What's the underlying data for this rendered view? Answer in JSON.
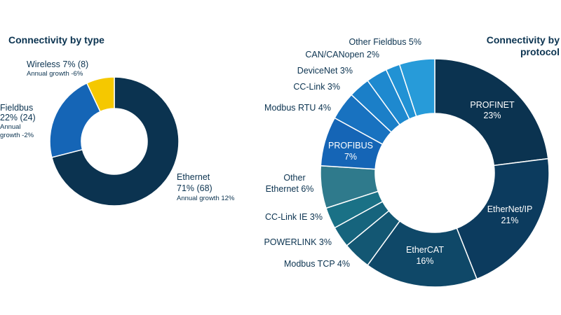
{
  "chart_data": [
    {
      "type": "pie",
      "title": "Connectivity by type",
      "donut": true,
      "slices": [
        {
          "label": "Ethernet",
          "value": 71,
          "count": "(68)",
          "growth": "Annual growth 12%",
          "color": "#0b3350"
        },
        {
          "label": "Fieldbus",
          "value": 22,
          "count": "(24)",
          "growth_line1": "Annual",
          "growth_line2": "growth -2%",
          "color": "#1565b6"
        },
        {
          "label": "Wireless",
          "value": 7,
          "count": "(8)",
          "growth": "Annual growth -6%",
          "color": "#f5c800"
        }
      ],
      "labels": {
        "ethernet": {
          "name": "Ethernet",
          "line2": "71% (68)",
          "growth": "Annual growth 12%"
        },
        "fieldbus": {
          "name": "Fieldbus",
          "line2": "22% (24)",
          "growth1": "Annual",
          "growth2": "growth -2%"
        },
        "wireless": {
          "line1": "Wireless 7% (8)",
          "growth": "Annual growth -6%"
        }
      }
    },
    {
      "type": "pie",
      "title_line1": "Connectivity by",
      "title_line2": "protocol",
      "donut": true,
      "slices": [
        {
          "label": "PROFINET",
          "value": 23,
          "color": "#0b3350"
        },
        {
          "label": "EtherNet/IP",
          "value": 21,
          "color": "#0c3b5e"
        },
        {
          "label": "EtherCAT",
          "value": 16,
          "color": "#0f4868"
        },
        {
          "label": "Modbus TCP",
          "value": 4,
          "color": "#135773"
        },
        {
          "label": "POWERLINK",
          "value": 3,
          "color": "#16647d"
        },
        {
          "label": "CC-Link IE",
          "value": 3,
          "color": "#1a7186"
        },
        {
          "label": "Other Ethernet",
          "value": 6,
          "color": "#2f7a8c"
        },
        {
          "label": "PROFIBUS",
          "value": 7,
          "color": "#1565b6"
        },
        {
          "label": "Modbus RTU",
          "value": 4,
          "color": "#1872c0"
        },
        {
          "label": "CC-Link",
          "value": 3,
          "color": "#1b7fc8"
        },
        {
          "label": "DeviceNet",
          "value": 3,
          "color": "#1e89cf"
        },
        {
          "label": "CAN/CANopen",
          "value": 2,
          "color": "#2192d4"
        },
        {
          "label": "Other Fieldbus",
          "value": 5,
          "color": "#279bd9"
        }
      ],
      "labels": {
        "profinet": {
          "line1": "PROFINET",
          "line2": "23%"
        },
        "ethernetip": {
          "line1": "EtherNet/IP",
          "line2": "21%"
        },
        "ethercat": {
          "line1": "EtherCAT",
          "line2": "16%"
        },
        "profibus": {
          "line1": "PROFIBUS",
          "line2": "7%"
        },
        "modbustcp": "Modbus TCP 4%",
        "powerlink": "POWERLINK 3%",
        "cclinkie": "CC-Link IE 3%",
        "otherethernet": {
          "line1": "Other",
          "line2": "Ethernet 6%"
        },
        "modbusrtu": "Modbus RTU 4%",
        "cclink": "CC-Link 3%",
        "devicenet": "DeviceNet 3%",
        "cancanopen": "CAN/CANopen 2%",
        "otherfieldbus": "Other Fieldbus 5%"
      }
    }
  ]
}
